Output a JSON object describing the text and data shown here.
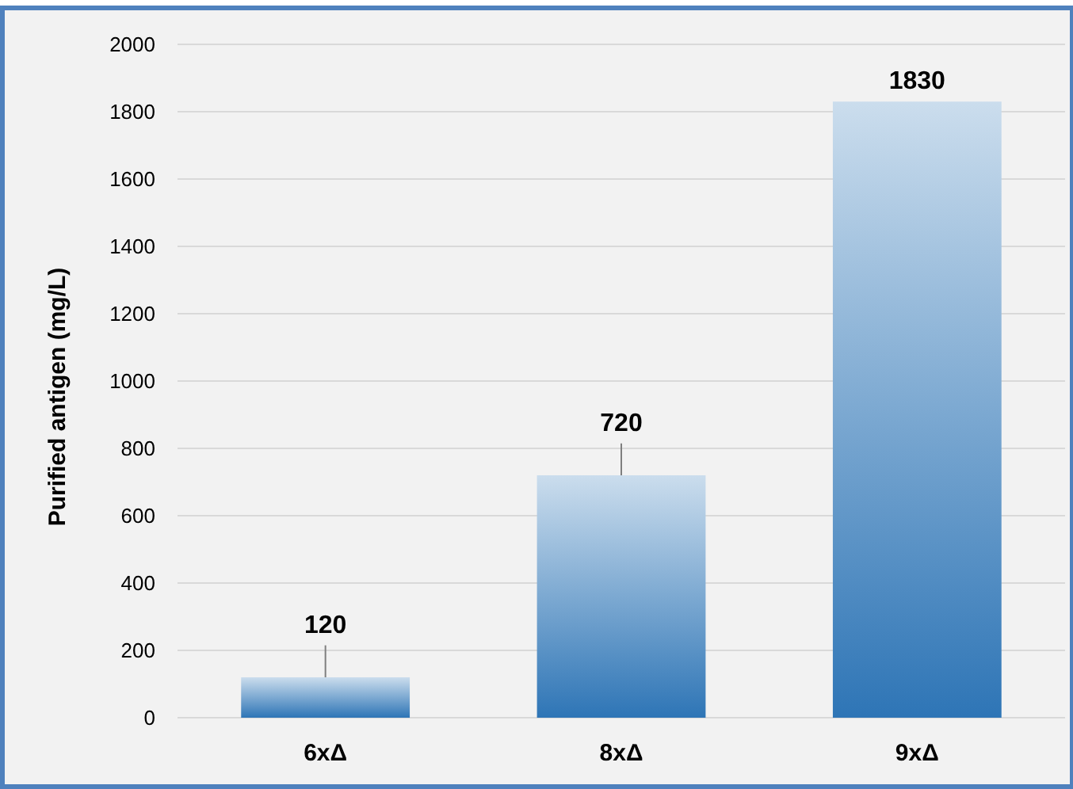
{
  "chart_data": {
    "type": "bar",
    "ylabel": "Purified antigen (mg/L)",
    "categories": [
      "6xΔ",
      "8xΔ",
      "9xΔ"
    ],
    "values": [
      120,
      720,
      1830
    ],
    "errors": [
      [
        120,
        215
      ],
      [
        720,
        815
      ],
      null
    ],
    "color": "#2e75b6",
    "data_labels": true,
    "ylim": [
      0,
      2000
    ],
    "yticks": [
      0,
      200,
      400,
      600,
      800,
      1000,
      1200,
      1400,
      1600,
      1800,
      2000
    ],
    "grid": "y"
  }
}
